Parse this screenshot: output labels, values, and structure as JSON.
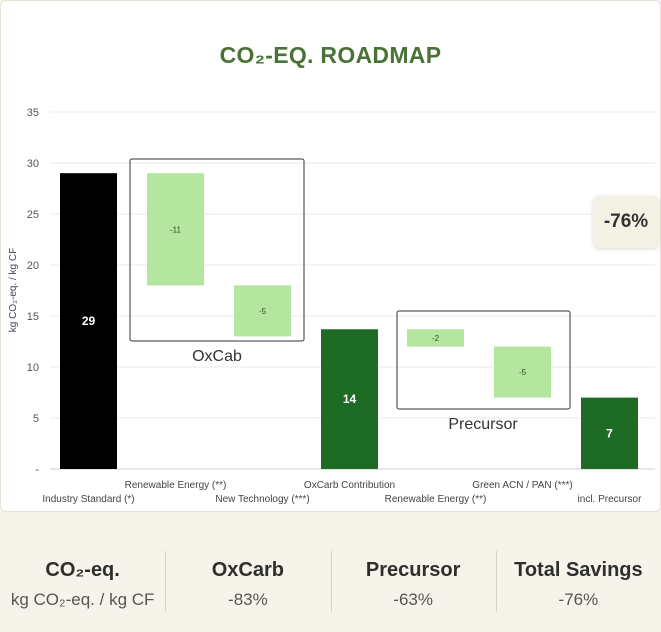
{
  "title": "CO₂-EQ. ROADMAP",
  "badge": "-76%",
  "chart_data": {
    "type": "bar",
    "subtype": "waterfall",
    "ylabel": "kg CO₂-eq. / kg CF",
    "ylim": [
      0,
      35
    ],
    "yticks": [
      "-",
      "5",
      "10",
      "15",
      "20",
      "25",
      "30",
      "35"
    ],
    "bars": [
      {
        "label": "Industry Standard (*)",
        "start": 0,
        "end": 29,
        "value_label": "29",
        "kind": "total_black"
      },
      {
        "label": "Renewable Energy (**)",
        "start": 29,
        "end": 18,
        "value_label": "-11",
        "kind": "delta"
      },
      {
        "label": "New Technology (***)",
        "start": 18,
        "end": 13,
        "value_label": "-5",
        "kind": "delta"
      },
      {
        "label": "OxCarb Contribution",
        "start": 0,
        "end": 13.7,
        "value_label": "14",
        "kind": "total_green"
      },
      {
        "label": "Renewable Energy (**)",
        "start": 13.7,
        "end": 12,
        "value_label": "-2",
        "kind": "delta"
      },
      {
        "label": "Green ACN / PAN (***)",
        "start": 12,
        "end": 7,
        "value_label": "-5",
        "kind": "delta"
      },
      {
        "label": "incl. Precursor",
        "start": 0,
        "end": 7,
        "value_label": "7",
        "kind": "total_green"
      }
    ],
    "groups": [
      {
        "label": "OxCab"
      },
      {
        "label": "Precursor"
      }
    ]
  },
  "summary": [
    {
      "heading": "CO₂-eq.",
      "value": "kg CO₂-eq. / kg CF"
    },
    {
      "heading": "OxCarb",
      "value": "-83%"
    },
    {
      "heading": "Precursor",
      "value": "-63%"
    },
    {
      "heading": "Total Savings",
      "value": "-76%"
    }
  ]
}
